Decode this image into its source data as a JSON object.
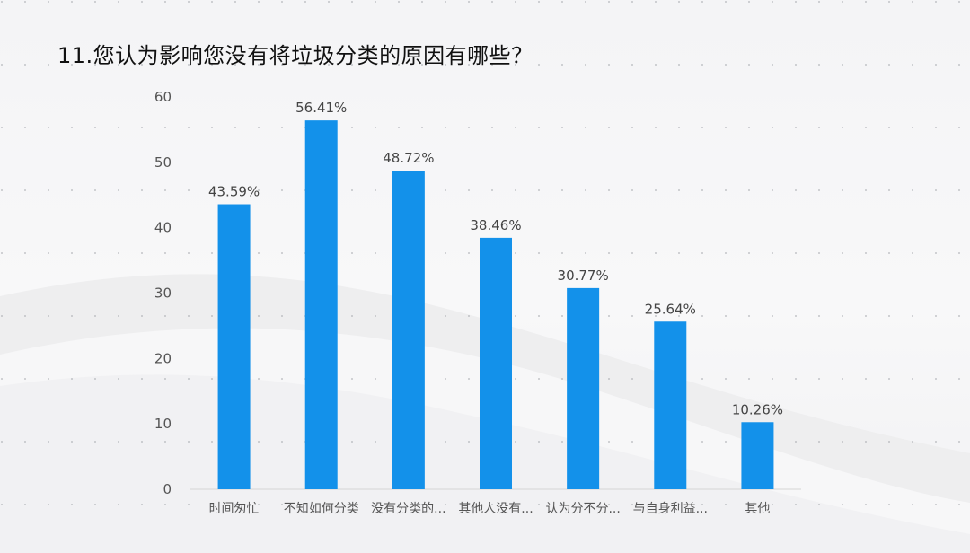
{
  "title": "11.您认为影响您没有将垃圾分类的原因有哪些？",
  "chart_data": {
    "type": "bar",
    "title": "11.您认为影响您没有将垃圾分类的原因有哪些？",
    "xlabel": "",
    "ylabel": "",
    "ylim": [
      0,
      60
    ],
    "yticks": [
      0,
      10,
      20,
      30,
      40,
      50,
      60
    ],
    "categories": [
      "时间匆忙",
      "不知如何分类",
      "没有分类的...",
      "其他人没有...",
      "认为分不分...",
      "与自身利益...",
      "其他"
    ],
    "values": [
      43.59,
      56.41,
      48.72,
      38.46,
      30.77,
      25.64,
      10.26
    ],
    "data_labels": [
      "43.59%",
      "56.41%",
      "48.72%",
      "38.46%",
      "30.77%",
      "25.64%",
      "10.26%"
    ],
    "grid": false,
    "bar_color": "#1391ea"
  },
  "colors": {
    "bar": "#1391ea",
    "axis_text": "#555555",
    "label_text": "#444444"
  }
}
